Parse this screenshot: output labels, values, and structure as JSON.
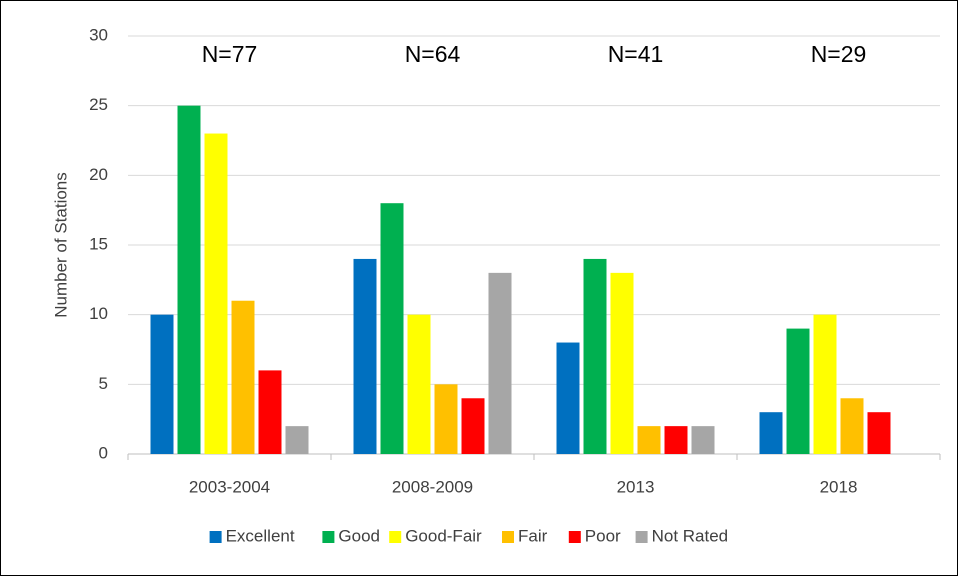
{
  "chart_data": {
    "type": "bar",
    "categories": [
      "2003-2004",
      "2008-2009",
      "2013",
      "2018"
    ],
    "series": [
      {
        "name": "Excellent",
        "color": "#0070c0",
        "values": [
          10,
          14,
          8,
          3
        ]
      },
      {
        "name": "Good",
        "color": "#00b050",
        "values": [
          25,
          18,
          14,
          9
        ]
      },
      {
        "name": "Good-Fair",
        "color": "#ffff00",
        "values": [
          23,
          10,
          13,
          10
        ]
      },
      {
        "name": "Fair",
        "color": "#ffc000",
        "values": [
          11,
          5,
          2,
          4
        ]
      },
      {
        "name": "Poor",
        "color": "#ff0000",
        "values": [
          6,
          4,
          2,
          3
        ]
      },
      {
        "name": "Not Rated",
        "color": "#a6a6a6",
        "values": [
          2,
          13,
          2,
          0
        ]
      }
    ],
    "annotations": [
      "N=77",
      "N=64",
      "N=41",
      "N=29"
    ],
    "ylabel": "Number of Stations",
    "ylim": [
      0,
      30
    ],
    "yticks": [
      0,
      5,
      10,
      15,
      20,
      25,
      30
    ],
    "grid": true,
    "legend": "bottom"
  }
}
